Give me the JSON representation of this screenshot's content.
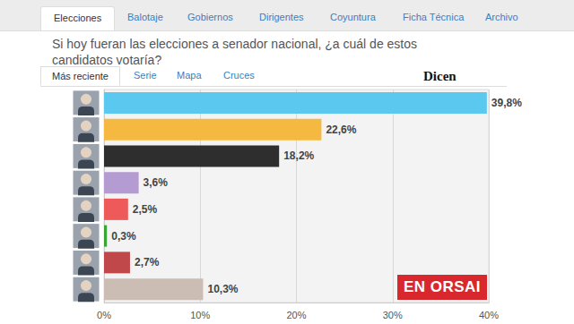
{
  "page": {
    "tabs": [
      "Elecciones",
      "Balotaje",
      "Gobiernos",
      "Dirigentes",
      "Coyuntura",
      "Ficha Técnica",
      "Archivo"
    ],
    "question": "Si hoy fueran las elecciones a senador nacional, ¿a cuál de estos candidatos votaría?",
    "subtabs": [
      "Más reciente",
      "Serie",
      "Mapa",
      "Cruces"
    ],
    "annotation": "Dicen",
    "watermark": "EN ORSAI"
  },
  "chart_data": {
    "type": "bar",
    "orientation": "horizontal",
    "categories": [
      null,
      null,
      null,
      null,
      null,
      null,
      null,
      null
    ],
    "values": [
      39.8,
      22.6,
      18.2,
      3.6,
      2.5,
      0.3,
      2.7,
      10.3
    ],
    "value_labels": [
      "39,8%",
      "22,6%",
      "18,2%",
      "3,6%",
      "2,5%",
      "0,3%",
      "2,7%",
      "10,3%"
    ],
    "colors": [
      "#5bc8f0",
      "#f5b841",
      "#2e2e2e",
      "#b49bd1",
      "#ee5a5a",
      "#3aa535",
      "#c0474a",
      "#cbbdb3"
    ],
    "xlim": [
      0,
      40
    ],
    "xticks": [
      {
        "value": 0,
        "label": "0%"
      },
      {
        "value": 10,
        "label": "10%"
      },
      {
        "value": 20,
        "label": "20%"
      },
      {
        "value": 30,
        "label": "30%"
      },
      {
        "value": 40,
        "label": "40%"
      }
    ],
    "data_labels": true,
    "grid": true,
    "tick_labels": "x"
  }
}
